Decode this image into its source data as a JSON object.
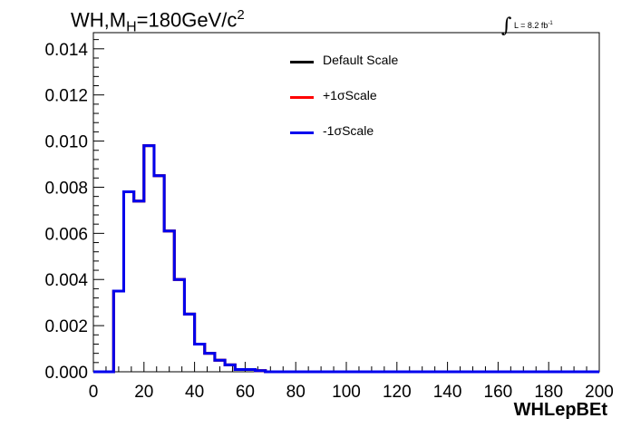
{
  "title": {
    "prefix": "WH,M",
    "sub": "H",
    "value": "=180GeV/c",
    "sup": "2"
  },
  "luminosity": {
    "integral_symbol": "∫",
    "text": "L = 8.2 fb",
    "sup": "-1"
  },
  "legend": [
    {
      "label": "Default Scale",
      "color": "#000000"
    },
    {
      "label": "+1σScale",
      "color": "#ff0000"
    },
    {
      "label": "-1σScale",
      "color": "#0000ee"
    }
  ],
  "chart_data": {
    "type": "line",
    "xlabel": "WHLepBEt",
    "ylabel": "",
    "xlim": [
      0,
      200
    ],
    "ylim": [
      0,
      0.0147
    ],
    "bin_width": 4,
    "xticks": [
      0,
      20,
      40,
      60,
      80,
      100,
      120,
      140,
      160,
      180,
      200
    ],
    "yticks": [
      0.0,
      0.002,
      0.004,
      0.006,
      0.008,
      0.01,
      0.012,
      0.014
    ],
    "ytick_labels": [
      "0.000",
      "0.002",
      "0.004",
      "0.006",
      "0.008",
      "0.010",
      "0.012",
      "0.014"
    ],
    "bin_edges_start": 0,
    "series": [
      {
        "name": "Default Scale",
        "color": "#000000",
        "values": [
          0,
          0,
          0.0035,
          0.0078,
          0.0074,
          0.0098,
          0.0085,
          0.0061,
          0.004,
          0.0025,
          0.0012,
          0.0008,
          0.0005,
          0.0003,
          0.0001,
          0.0001,
          5e-05,
          0,
          0,
          0,
          0,
          0,
          0,
          0,
          0,
          0,
          0,
          0,
          0,
          0,
          0,
          0,
          0,
          0,
          0,
          0,
          0,
          0,
          0,
          0,
          0,
          0,
          0,
          0,
          0,
          0,
          0,
          0,
          0,
          0
        ]
      },
      {
        "name": "+1σScale",
        "color": "#ff0000",
        "values": [
          0,
          0,
          0.0035,
          0.0078,
          0.0074,
          0.0098,
          0.0085,
          0.0061,
          0.004,
          0.0025,
          0.0012,
          0.0008,
          0.0005,
          0.0003,
          0.0001,
          0.0001,
          5e-05,
          0,
          0,
          0,
          0,
          0,
          0,
          0,
          0,
          0,
          0,
          0,
          0,
          0,
          0,
          0,
          0,
          0,
          0,
          0,
          0,
          0,
          0,
          0,
          0,
          0,
          0,
          0,
          0,
          0,
          0,
          0,
          0,
          0
        ]
      },
      {
        "name": "-1σScale",
        "color": "#0000ee",
        "values": [
          0,
          0,
          0.0035,
          0.0078,
          0.0074,
          0.0098,
          0.0085,
          0.0061,
          0.004,
          0.0025,
          0.0012,
          0.0008,
          0.0005,
          0.0003,
          0.0001,
          0.0001,
          5e-05,
          0,
          0,
          0,
          0,
          0,
          0,
          0,
          0,
          0,
          0,
          0,
          0,
          0,
          0,
          0,
          0,
          0,
          0,
          0,
          0,
          0,
          0,
          0,
          0,
          0,
          0,
          0,
          0,
          0,
          0,
          0,
          0,
          0
        ]
      }
    ],
    "grid": false,
    "legend_position": "top-center"
  }
}
